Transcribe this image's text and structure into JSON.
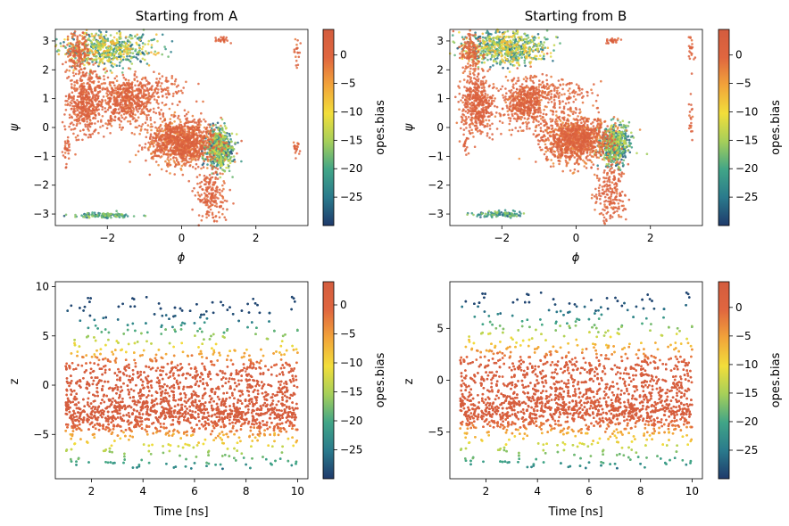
{
  "colormap": {
    "name": "viridis-like-to-orange",
    "stops": [
      "#1f3a6b",
      "#2a7a8c",
      "#41a587",
      "#a5cf5a",
      "#f2de3a",
      "#f2a43a",
      "#e0663f",
      "#d35c3e"
    ],
    "colorbar_label": "opes.bias"
  },
  "chart_data": [
    {
      "id": "phi-psi-A",
      "type": "scatter",
      "title": "Starting from A",
      "xlabel": "ϕ",
      "ylabel": "ψ",
      "xlim": [
        -3.4,
        3.4
      ],
      "ylim": [
        -3.4,
        3.4
      ],
      "xticks": [
        -2,
        0,
        2
      ],
      "yticks": [
        -3,
        -2,
        -1,
        0,
        1,
        2,
        3
      ],
      "colorbar": {
        "label": "opes.bias",
        "range": [
          -30,
          4.5
        ],
        "ticks": [
          0,
          -5,
          -10,
          -15,
          -20,
          -25
        ]
      },
      "clusters": [
        {
          "cx": -2.6,
          "cy": 0.9,
          "sx": 0.25,
          "sy": 0.55,
          "n": 500,
          "bias": [
            -2,
            3
          ]
        },
        {
          "cx": -1.5,
          "cy": 0.9,
          "sx": 0.35,
          "sy": 0.4,
          "n": 500,
          "bias": [
            -3,
            3
          ]
        },
        {
          "cx": -2.0,
          "cy": 2.7,
          "sx": 0.6,
          "sy": 0.3,
          "n": 600,
          "bias": [
            -28,
            -5
          ]
        },
        {
          "cx": -2.8,
          "cy": 2.6,
          "sx": 0.15,
          "sy": 0.35,
          "n": 150,
          "bias": [
            -3,
            3
          ]
        },
        {
          "cx": 0.0,
          "cy": -0.5,
          "sx": 0.45,
          "sy": 0.4,
          "n": 1100,
          "bias": [
            -4,
            3
          ]
        },
        {
          "cx": 1.0,
          "cy": -0.7,
          "sx": 0.2,
          "sy": 0.35,
          "n": 500,
          "bias": [
            -29,
            -12
          ]
        },
        {
          "cx": -0.8,
          "cy": 1.3,
          "sx": 0.5,
          "sy": 0.3,
          "n": 150,
          "bias": [
            -2,
            3
          ]
        },
        {
          "cx": 0.8,
          "cy": -2.3,
          "sx": 0.2,
          "sy": 0.5,
          "n": 200,
          "bias": [
            -2,
            3
          ]
        },
        {
          "cx": -2.1,
          "cy": -3.05,
          "sx": 0.4,
          "sy": 0.04,
          "n": 120,
          "bias": [
            -28,
            -15
          ]
        },
        {
          "cx": 1.1,
          "cy": 3.05,
          "sx": 0.1,
          "sy": 0.05,
          "n": 25,
          "bias": [
            -2,
            3
          ]
        },
        {
          "cx": 3.1,
          "cy": 2.7,
          "sx": 0.04,
          "sy": 0.3,
          "n": 20,
          "bias": [
            -2,
            3
          ]
        },
        {
          "cx": 3.1,
          "cy": -0.7,
          "sx": 0.05,
          "sy": 0.2,
          "n": 20,
          "bias": [
            -2,
            3
          ]
        },
        {
          "cx": -3.1,
          "cy": -0.7,
          "sx": 0.05,
          "sy": 0.3,
          "n": 30,
          "bias": [
            -2,
            3
          ]
        }
      ]
    },
    {
      "id": "phi-psi-B",
      "type": "scatter",
      "title": "Starting from B",
      "xlabel": "ϕ",
      "ylabel": "ψ",
      "xlim": [
        -3.4,
        3.4
      ],
      "ylim": [
        -3.4,
        3.4
      ],
      "xticks": [
        -2,
        0,
        2
      ],
      "yticks": [
        -3,
        -2,
        -1,
        0,
        1,
        2,
        3
      ],
      "colorbar": {
        "label": "opes.bias",
        "range": [
          -30,
          4.5
        ],
        "ticks": [
          0,
          -5,
          -10,
          -15,
          -20,
          -25
        ]
      },
      "clusters": [
        {
          "cx": -2.65,
          "cy": 0.8,
          "sx": 0.22,
          "sy": 0.5,
          "n": 450,
          "bias": [
            -2,
            3
          ]
        },
        {
          "cx": -1.35,
          "cy": 0.85,
          "sx": 0.3,
          "sy": 0.4,
          "n": 500,
          "bias": [
            -3,
            3
          ]
        },
        {
          "cx": -1.9,
          "cy": 2.75,
          "sx": 0.55,
          "sy": 0.28,
          "n": 650,
          "bias": [
            -28,
            -6
          ]
        },
        {
          "cx": -2.8,
          "cy": 2.6,
          "sx": 0.15,
          "sy": 0.35,
          "n": 150,
          "bias": [
            -3,
            3
          ]
        },
        {
          "cx": 0.0,
          "cy": -0.4,
          "sx": 0.45,
          "sy": 0.4,
          "n": 1100,
          "bias": [
            -4,
            3
          ]
        },
        {
          "cx": 1.05,
          "cy": -0.6,
          "sx": 0.2,
          "sy": 0.35,
          "n": 500,
          "bias": [
            -29,
            -12
          ]
        },
        {
          "cx": -0.6,
          "cy": 1.2,
          "sx": 0.5,
          "sy": 0.3,
          "n": 150,
          "bias": [
            -2,
            3
          ]
        },
        {
          "cx": 0.9,
          "cy": -2.3,
          "sx": 0.2,
          "sy": 0.5,
          "n": 200,
          "bias": [
            -2,
            3
          ]
        },
        {
          "cx": -2.0,
          "cy": -3.0,
          "sx": 0.35,
          "sy": 0.05,
          "n": 100,
          "bias": [
            -28,
            -15
          ]
        },
        {
          "cx": 1.0,
          "cy": 3.0,
          "sx": 0.1,
          "sy": 0.05,
          "n": 25,
          "bias": [
            -2,
            3
          ]
        },
        {
          "cx": 3.1,
          "cy": 2.7,
          "sx": 0.04,
          "sy": 0.3,
          "n": 20,
          "bias": [
            -2,
            3
          ]
        },
        {
          "cx": 3.1,
          "cy": 0.5,
          "sx": 0.04,
          "sy": 0.5,
          "n": 20,
          "bias": [
            -2,
            3
          ]
        },
        {
          "cx": -3.0,
          "cy": -0.5,
          "sx": 0.05,
          "sy": 0.3,
          "n": 20,
          "bias": [
            -2,
            3
          ]
        }
      ]
    },
    {
      "id": "z-time-A",
      "type": "scatter",
      "title": "",
      "xlabel": "Time [ns]",
      "ylabel": "z",
      "xlim": [
        0.6,
        10.4
      ],
      "ylim": [
        -9.5,
        10.5
      ],
      "xticks": [
        2,
        4,
        6,
        8,
        10
      ],
      "yticks": [
        -5,
        0,
        5,
        10
      ],
      "colorbar": {
        "label": "opes.bias",
        "range": [
          -30,
          4
        ],
        "ticks": [
          0,
          -5,
          -10,
          -15,
          -20,
          -25
        ]
      },
      "time_range": [
        1,
        10
      ],
      "z_range": [
        -8.5,
        9
      ]
    },
    {
      "id": "z-time-B",
      "type": "scatter",
      "title": "",
      "xlabel": "Time [ns]",
      "ylabel": "z",
      "xlim": [
        0.6,
        10.4
      ],
      "ylim": [
        -9.5,
        9.5
      ],
      "xticks": [
        2,
        4,
        6,
        8,
        10
      ],
      "yticks": [
        -5,
        0,
        5
      ],
      "colorbar": {
        "label": "opes.bias",
        "range": [
          -30,
          4.5
        ],
        "ticks": [
          0,
          -5,
          -10,
          -15,
          -20,
          -25
        ]
      },
      "time_range": [
        1,
        10
      ],
      "z_range": [
        -8.5,
        8.5
      ]
    }
  ]
}
